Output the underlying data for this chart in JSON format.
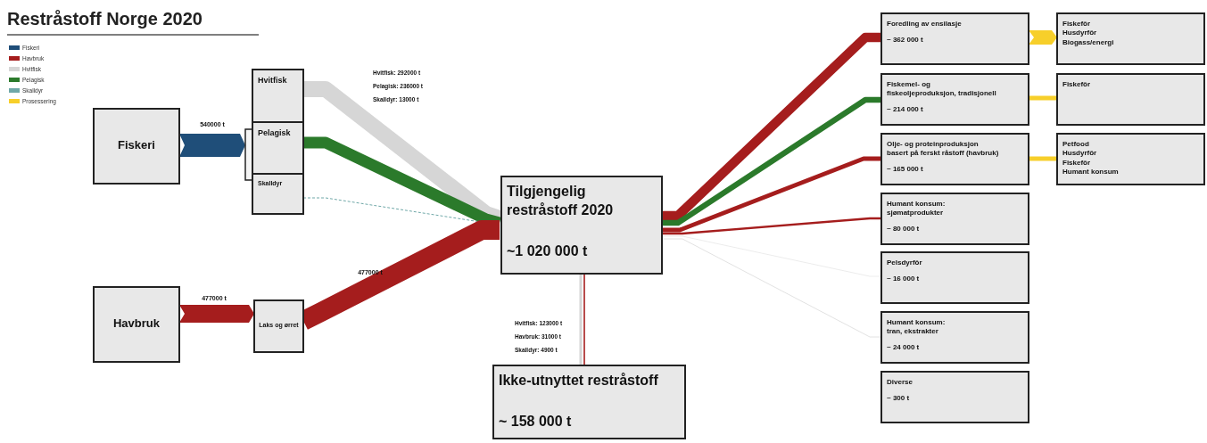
{
  "chart_data": {
    "type": "other",
    "title": "Restråstoff Norge 2020",
    "legend": "top left",
    "series": [
      {
        "name": "Fiskeri",
        "color": "#1f4e79",
        "values": [
          null,
          null,
          null,
          null,
          null,
          null,
          null,
          null,
          null,
          null,
          null,
          null,
          null,
          null,
          null,
          null,
          null,
          null
        ]
      },
      {
        "name": "Havbruk",
        "color": "#a51d1d",
        "values": [
          null,
          null,
          null,
          null,
          null,
          null,
          null,
          null,
          null,
          null,
          null,
          null,
          null,
          null,
          null,
          null,
          null,
          null
        ]
      },
      {
        "name": "Hvitfisk",
        "color": "#d6d6d6",
        "values": [
          null,
          null,
          null,
          null,
          null,
          null,
          null,
          null,
          null,
          null,
          null,
          null,
          null,
          null,
          null,
          null,
          null,
          null
        ]
      },
      {
        "name": "Pelagisk",
        "color": "#2b7a2b",
        "values": [
          null,
          null,
          null,
          null,
          null,
          null,
          null,
          null,
          null,
          null,
          null,
          null,
          null,
          null,
          null,
          null,
          null,
          null
        ]
      },
      {
        "name": "Skalldyr",
        "color": "#6fa8a8",
        "values": [
          null,
          null,
          null,
          null,
          null,
          null,
          null,
          null,
          null,
          null,
          null,
          null,
          null,
          null,
          null,
          null,
          null,
          null
        ]
      },
      {
        "name": "Prosessering",
        "color": "#f7cf2a",
        "values": [
          null,
          null,
          null,
          null,
          null,
          null,
          null,
          null,
          null,
          null,
          null,
          null,
          null,
          null,
          null,
          null,
          null,
          null
        ]
      }
    ],
    "categories": [
      "Fiskeri",
      "Havbruk",
      "Hvitfisk",
      "Pelagisk",
      "Skalldyr",
      "Laks og ørret",
      "Tilgjengelig\nrestråstoff 2020",
      "Ikke-utnyttet restråstoff",
      "Foredling av ensilasje",
      "Fiskemel- og\nfiskeoljeproduksjon, tradisjonell",
      "Olje- og proteinproduksjon\nbasert på ferskt råstoff (havbruk)",
      "Humant konsum:\nsjømatprodukter",
      "Pelsdyrfôr",
      "Humant konsum:\ntran, ekstrakter",
      "Diverse",
      "Fiskefôr\nHusdyrfôr\nBiogass/energi",
      "Fiskefôr",
      "Petfood\nHusdyrfôr\nFiskefôr\nHumant konsum"
    ],
    "values": [
      null,
      null,
      null,
      null,
      null,
      null,
      1020000,
      158000,
      362000,
      214000,
      165000,
      80000,
      16000,
      24000,
      300,
      null,
      null,
      null
    ],
    "value_labels": [
      null,
      null,
      null,
      null,
      null,
      null,
      "~1 020 000 t",
      "~ 158 000 t",
      "~ 362 000 t",
      "~ 214 000 t",
      "~ 165 000 t",
      "~ 80 000 t",
      "~ 16 000 t",
      "~ 24 000 t",
      "~ 300 t",
      null,
      null,
      null
    ],
    "annotations": [
      "540000 t",
      "477000 t",
      "477000 t",
      "Hvitfisk: 292000 t",
      "Pelagisk: 236000 t",
      "Skalldyr: 13000 t",
      "Hvitfisk: 123000 t",
      "Havbruk: 31000 t",
      "Skalldyr: 4900 t"
    ]
  }
}
